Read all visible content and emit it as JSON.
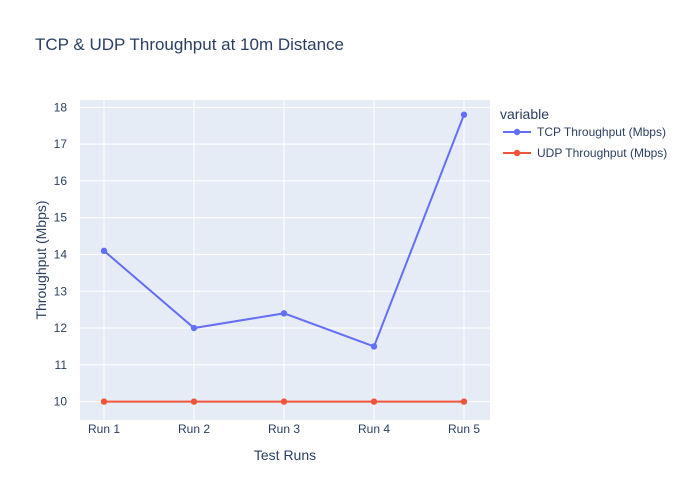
{
  "chart_data": {
    "type": "line",
    "title": "TCP & UDP Throughput at 10m Distance",
    "xlabel": "Test Runs",
    "ylabel": "Throughput (Mbps)",
    "categories": [
      "Run 1",
      "Run 2",
      "Run 3",
      "Run 4",
      "Run 5"
    ],
    "ylim": [
      9.5,
      18.2
    ],
    "yticks": [
      10,
      11,
      12,
      13,
      14,
      15,
      16,
      17,
      18
    ],
    "grid": true,
    "legend": {
      "title": "variable",
      "placement": "right"
    },
    "series": [
      {
        "name": "TCP Throughput (Mbps)",
        "color": "#636efa",
        "values": [
          14.1,
          12.0,
          12.4,
          11.5,
          17.8
        ]
      },
      {
        "name": "UDP Throughput (Mbps)",
        "color": "#ef553b",
        "values": [
          10.0,
          10.0,
          10.0,
          10.0,
          10.0
        ]
      }
    ],
    "colors": {
      "plot_background": "#e5ecf6",
      "grid": "#ffffff",
      "text": "#2a3f5f"
    }
  }
}
